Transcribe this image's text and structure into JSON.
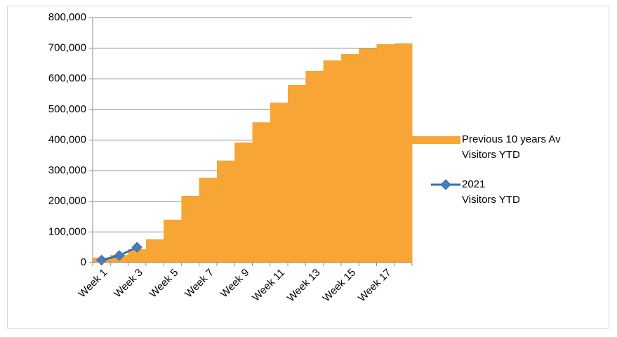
{
  "chart_data": {
    "type": "bar",
    "categories": [
      "Week 1",
      null,
      "Week 3",
      null,
      "Week 5",
      null,
      "Week 7",
      null,
      "Week 9",
      null,
      "Week 11",
      null,
      "Week 13",
      null,
      "Week 15",
      null,
      "Week 17",
      null
    ],
    "series": [
      {
        "name": "Previous 10 years Av\nVisitors YTD",
        "type": "bar",
        "color": "#f7a535",
        "values": [
          16000,
          25000,
          44000,
          76000,
          140000,
          218000,
          277000,
          333000,
          392000,
          458000,
          522000,
          580000,
          626000,
          660000,
          681000,
          699000,
          713000,
          716000
        ]
      },
      {
        "name": "2021\nVisitors YTD",
        "type": "line",
        "color": "#2e75b6",
        "values": [
          8000,
          23000,
          50000,
          null,
          null,
          null,
          null,
          null,
          null,
          null,
          null,
          null,
          null,
          null,
          null,
          null,
          null,
          null
        ]
      }
    ],
    "ylim": [
      0,
      800000
    ],
    "yticks": [
      0,
      {
        "value": 100000,
        "label": "100,000"
      },
      {
        "value": 200000,
        "label": "200,000"
      },
      {
        "value": 300000,
        "label": "300,000"
      },
      {
        "value": 400000,
        "label": "400,000"
      },
      {
        "value": 500000,
        "label": "500,000"
      },
      {
        "value": 600000,
        "label": "600,000"
      },
      {
        "value": 700000,
        "label": "700,000"
      },
      {
        "value": 800000,
        "label": "800,000"
      }
    ],
    "grid": true,
    "legend": "right"
  }
}
